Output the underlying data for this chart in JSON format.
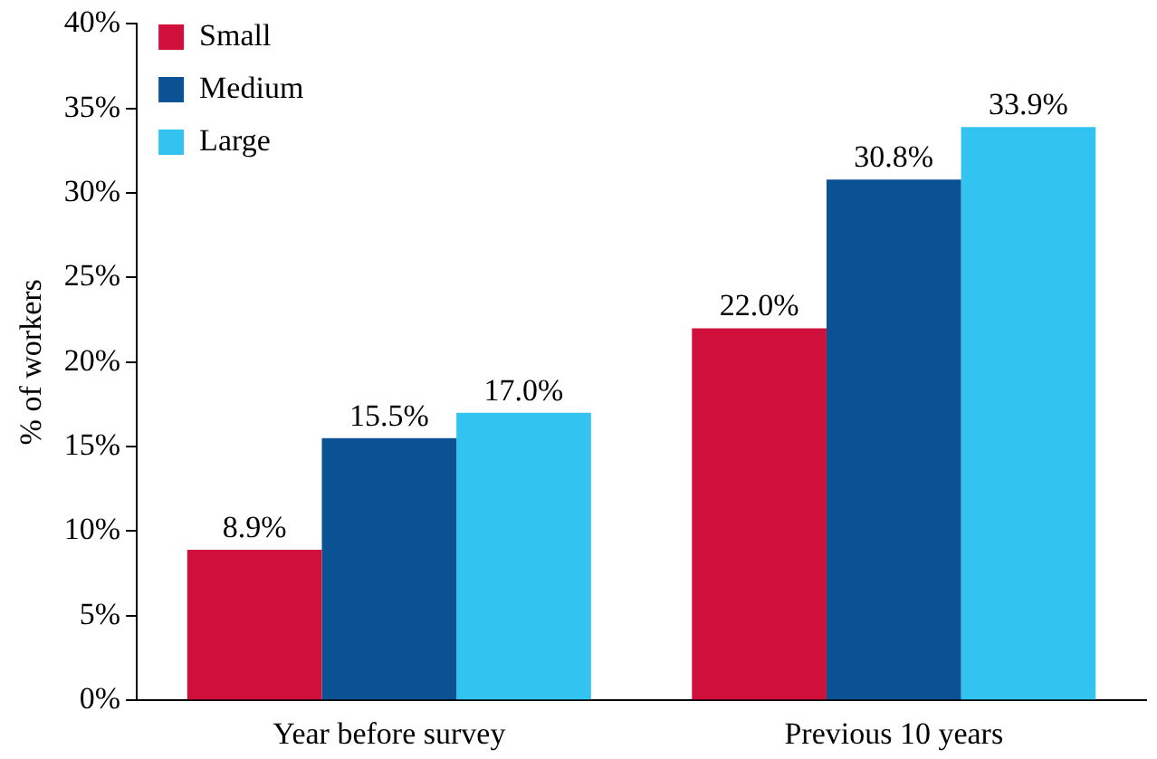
{
  "chart_data": {
    "type": "bar",
    "ylabel": "% of workers",
    "categories": [
      "Year before survey",
      "Previous 10 years"
    ],
    "series": [
      {
        "name": "Small",
        "color": "#d0103a",
        "values": [
          8.9,
          22.0
        ],
        "value_labels": [
          "8.9%",
          "22.0%"
        ]
      },
      {
        "name": "Medium",
        "color": "#0a5294",
        "values": [
          15.5,
          30.8
        ],
        "value_labels": [
          "15.5%",
          "30.8%"
        ]
      },
      {
        "name": "Large",
        "color": "#33c3f0",
        "values": [
          17.0,
          33.9
        ],
        "value_labels": [
          "17.0%",
          "33.9%"
        ]
      }
    ],
    "ylim": [
      0,
      40
    ],
    "yticks": [
      {
        "value": 0,
        "label": "0%"
      },
      {
        "value": 5,
        "label": "5%"
      },
      {
        "value": 10,
        "label": "10%"
      },
      {
        "value": 15,
        "label": "15%"
      },
      {
        "value": 20,
        "label": "20%"
      },
      {
        "value": 25,
        "label": "25%"
      },
      {
        "value": 30,
        "label": "30%"
      },
      {
        "value": 35,
        "label": "35%"
      },
      {
        "value": 40,
        "label": "40%"
      }
    ],
    "grid": false,
    "legend": "top left"
  }
}
